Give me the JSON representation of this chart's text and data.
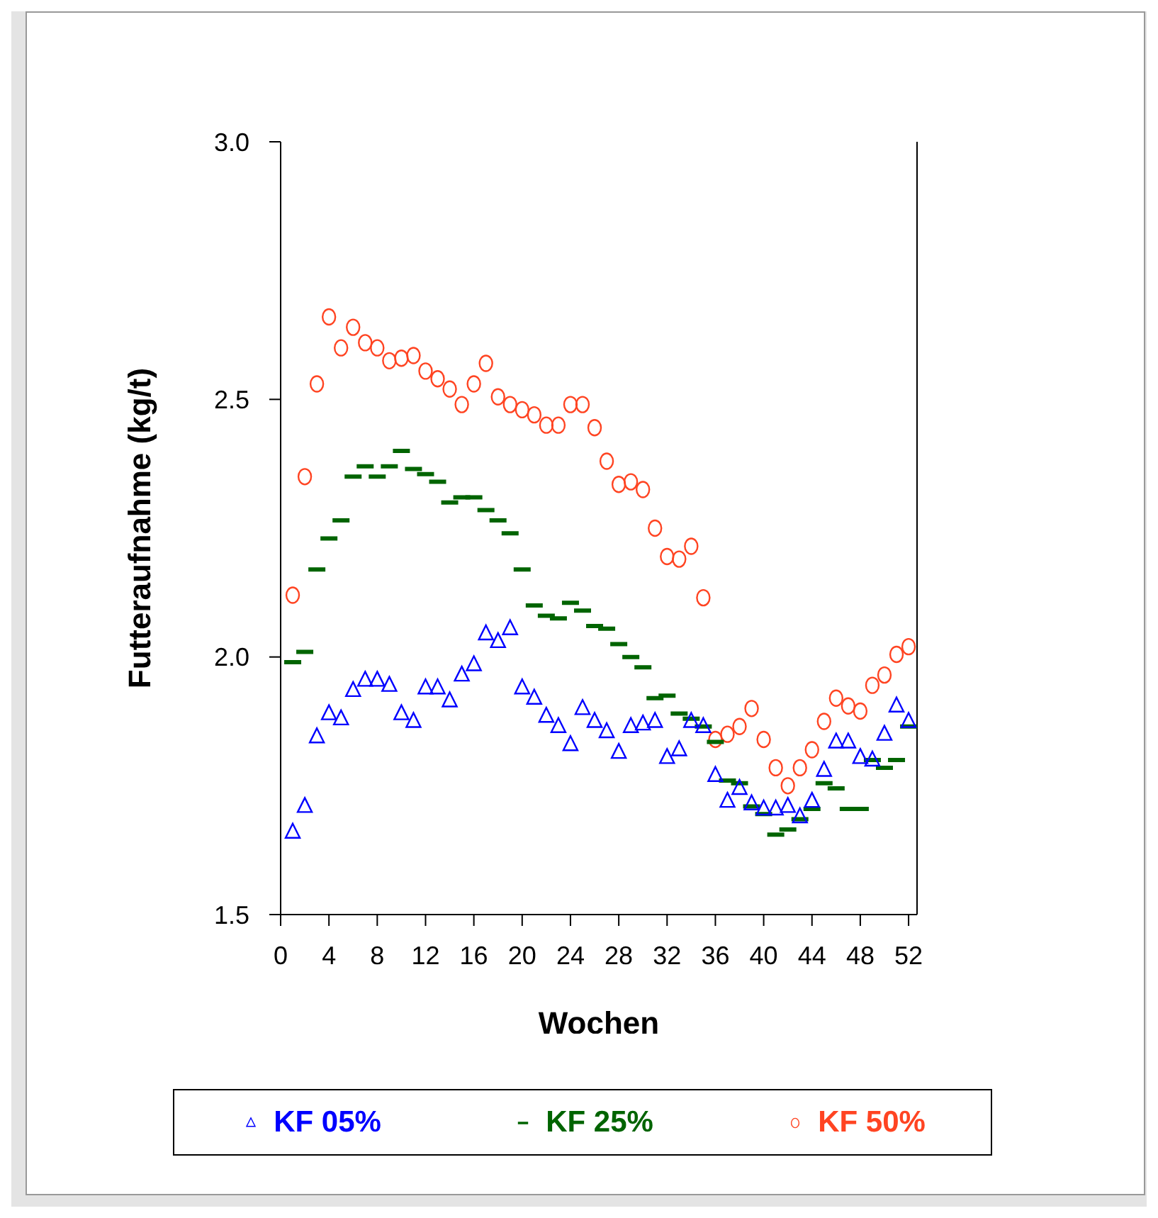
{
  "chart_data": {
    "type": "scatter",
    "xlabel": "Wochen",
    "ylabel": "Futteraufnahme (kg/t)",
    "x": [
      1,
      2,
      3,
      4,
      5,
      6,
      7,
      8,
      9,
      10,
      11,
      12,
      13,
      14,
      15,
      16,
      17,
      18,
      19,
      20,
      21,
      22,
      23,
      24,
      25,
      26,
      27,
      28,
      29,
      30,
      31,
      32,
      33,
      34,
      35,
      36,
      37,
      38,
      39,
      40,
      41,
      42,
      43,
      44,
      45,
      46,
      47,
      48,
      49,
      50,
      51,
      52
    ],
    "xlim": [
      0,
      52.7
    ],
    "xticks": [
      0,
      4,
      8,
      12,
      16,
      20,
      24,
      28,
      32,
      36,
      40,
      44,
      48,
      52
    ],
    "ylim": [
      1.5,
      3.0
    ],
    "yticks": [
      {
        "value": 1.5,
        "label": "1.5"
      },
      {
        "value": 2.0,
        "label": "2.0"
      },
      {
        "value": 2.5,
        "label": "2.5"
      },
      {
        "value": 3.0,
        "label": "3.0"
      }
    ],
    "grid": false,
    "legend": "bottom",
    "series": [
      {
        "name": "KF 05%",
        "color": "#0000ff",
        "marker": "triangle",
        "values": [
          1.66,
          1.71,
          1.845,
          1.89,
          1.88,
          1.935,
          1.955,
          1.955,
          1.945,
          1.89,
          1.875,
          1.94,
          1.94,
          1.915,
          1.965,
          1.985,
          2.045,
          2.03,
          2.055,
          1.94,
          1.92,
          1.885,
          1.865,
          1.83,
          1.9,
          1.875,
          1.855,
          1.815,
          1.865,
          1.87,
          1.875,
          1.805,
          1.82,
          1.875,
          1.865,
          1.77,
          1.72,
          1.745,
          1.715,
          1.705,
          1.705,
          1.71,
          1.69,
          1.72,
          1.78,
          1.835,
          1.835,
          1.805,
          1.8,
          1.85,
          1.905,
          1.875
        ]
      },
      {
        "name": "KF 25%",
        "color": "#006400",
        "values": [
          1.99,
          2.01,
          2.17,
          2.23,
          2.265,
          2.35,
          2.37,
          2.35,
          2.37,
          2.4,
          2.365,
          2.355,
          2.34,
          2.3,
          2.31,
          2.31,
          2.285,
          2.265,
          2.24,
          2.17,
          2.1,
          2.08,
          2.075,
          2.105,
          2.09,
          2.06,
          2.055,
          2.025,
          2.0,
          1.98,
          1.92,
          1.925,
          1.89,
          1.88,
          1.865,
          1.835,
          1.76,
          1.755,
          1.71,
          1.695,
          1.655,
          1.665,
          1.685,
          1.705,
          1.755,
          1.745,
          1.705,
          1.705,
          1.8,
          1.785,
          1.8,
          1.865
        ]
      },
      {
        "name": "KF 50%",
        "color": "#ff4422",
        "marker": "circle",
        "values": [
          2.12,
          2.35,
          2.53,
          2.66,
          2.6,
          2.64,
          2.61,
          2.6,
          2.575,
          2.58,
          2.585,
          2.555,
          2.54,
          2.52,
          2.49,
          2.53,
          2.57,
          2.505,
          2.49,
          2.48,
          2.47,
          2.45,
          2.45,
          2.49,
          2.49,
          2.445,
          2.38,
          2.335,
          2.34,
          2.325,
          2.25,
          2.195,
          2.19,
          2.215,
          2.115,
          1.84,
          1.85,
          1.865,
          1.9,
          1.84,
          1.785,
          1.75,
          1.785,
          1.82,
          1.875,
          1.92,
          1.905,
          1.895,
          1.945,
          1.965,
          2.005,
          2.02
        ]
      }
    ]
  }
}
